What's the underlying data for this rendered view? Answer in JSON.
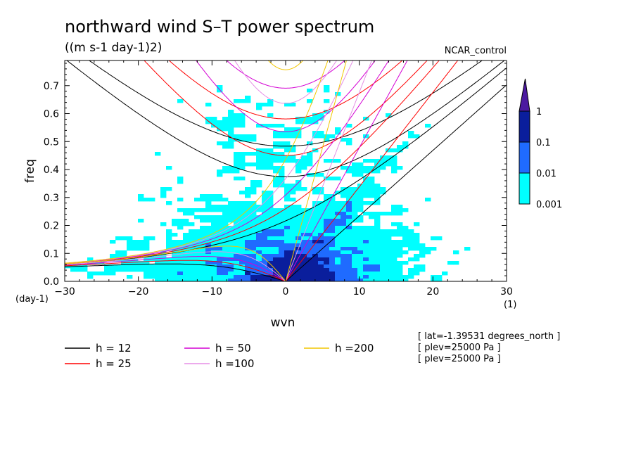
{
  "chart_data": {
    "type": "heatmap",
    "title": "northward wind S–T power spectrum",
    "subtitle": "((m s-1 day-1)2)",
    "run_label": "NCAR_control",
    "xlabel": "wvn",
    "ylabel": "freq",
    "x_unit_label": "(1)",
    "y_unit_label": "(day-1)",
    "xlim": [
      -30,
      30
    ],
    "ylim": [
      0,
      0.79
    ],
    "x_ticks": [
      -30,
      -20,
      -10,
      0,
      10,
      20,
      30
    ],
    "x_tick_labels": [
      "−30",
      "−20",
      "−10",
      "0",
      "10",
      "20",
      "30"
    ],
    "y_ticks": [
      0.0,
      0.1,
      0.2,
      0.3,
      0.4,
      0.5,
      0.6,
      0.7
    ],
    "y_tick_labels": [
      "0.0",
      "0.1",
      "0.2",
      "0.3",
      "0.4",
      "0.5",
      "0.6",
      "0.7"
    ],
    "colorbar": {
      "levels": [
        0.001,
        0.01,
        0.1,
        1
      ],
      "labels": [
        "0.001",
        "0.01",
        "0.1",
        "1"
      ],
      "colors": [
        "#00ffff",
        "#1f6bff",
        "#0a1e9c",
        "#4c1aa0"
      ]
    },
    "dispersion_curves": [
      {
        "h": 12,
        "label": "h = 12",
        "color": "#000000"
      },
      {
        "h": 25,
        "label": "h = 25",
        "color": "#ff0000"
      },
      {
        "h": 50,
        "label": "h = 50",
        "color": "#d400d4"
      },
      {
        "h": 100,
        "label": "h =100",
        "color": "#e58ee5"
      },
      {
        "h": 200,
        "label": "h =200",
        "color": "#f2c600"
      }
    ],
    "info_lines": [
      "[ lat=-1.39531 degrees_north ]",
      "[ plev=25000 Pa ]",
      "[ plev=25000 Pa ]"
    ]
  }
}
